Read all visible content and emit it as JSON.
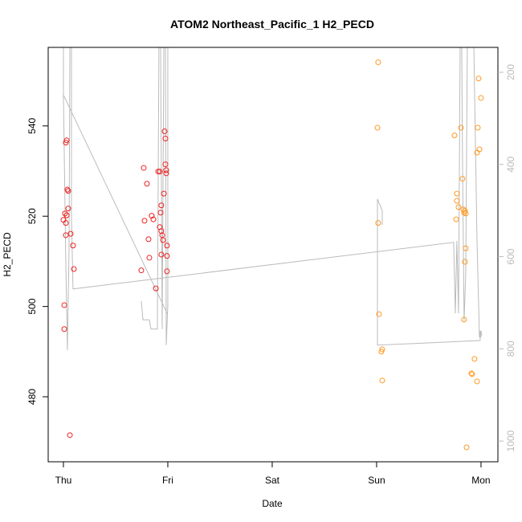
{
  "chart_data": {
    "type": "scatter",
    "title": "ATOM2 Northeast_Pacific_1 H2_PECD",
    "xlabel": "Date",
    "ylabel": "H2_PECD",
    "xlim": [
      -0.146,
      4.162
    ],
    "xticks": [
      {
        "value": 0,
        "label": "Thu"
      },
      {
        "value": 1,
        "label": "Fri"
      },
      {
        "value": 2,
        "label": "Sat"
      },
      {
        "value": 3,
        "label": "Sun"
      },
      {
        "value": 4,
        "label": "Mon"
      }
    ],
    "ylim": [
      465.6,
      557.4
    ],
    "yticks": [
      480,
      500,
      520,
      540
    ],
    "y2lim": [
      1045,
      146
    ],
    "y2ticks": [
      200,
      400,
      600,
      800,
      1000
    ],
    "series": [
      {
        "color": "#ee2222",
        "x": [
          0,
          0.008,
          0.008,
          0.015,
          0.023,
          0.031,
          0.023,
          0.023,
          0.031,
          0.038,
          0.046,
          0.046,
          0.069,
          0.092,
          0.1,
          0.062,
          0.746,
          0.769,
          0.777,
          0.8,
          0.815,
          0.823,
          0.846,
          0.862,
          0.885,
          0.908,
          0.923,
          0.931,
          0.938,
          0.923,
          0.938,
          0.946,
          0.954,
          0.938,
          0.962,
          0.969,
          0.977,
          0.977,
          0.985,
          0.985,
          0.992,
          0.992,
          0.992
        ],
        "values": [
          519.2,
          500.3,
          495.0,
          520.6,
          536.3,
          536.8,
          515.8,
          518.5,
          520.2,
          525.9,
          525.6,
          521.7,
          516.1,
          513.5,
          508.3,
          471.5,
          508.0,
          530.7,
          519.0,
          527.2,
          514.9,
          510.8,
          520.1,
          519.3,
          504.0,
          529.9,
          529.9,
          520.8,
          522.4,
          517.6,
          516.7,
          515.8,
          514.7,
          511.5,
          525.0,
          538.8,
          537.2,
          531.5,
          530.2,
          529.5,
          513.5,
          511.2,
          507.8
        ]
      },
      {
        "color": "#ff9922",
        "x": [
          3.015,
          3.008,
          3.015,
          3.023,
          3.054,
          3.046,
          3.054,
          3.746,
          3.769,
          3.769,
          3.785,
          3.762,
          3.808,
          3.823,
          3.831,
          3.838,
          3.846,
          3.854,
          3.854,
          3.846,
          3.838,
          3.862,
          3.908,
          3.915,
          3.938,
          3.962,
          3.962,
          3.969,
          3.985,
          3.977,
          4.0
        ],
        "values": [
          554.1,
          539.6,
          518.5,
          498.3,
          490.5,
          490.0,
          483.6,
          537.9,
          525.0,
          523.4,
          522.0,
          519.3,
          539.6,
          528.3,
          521.5,
          520.8,
          521.2,
          520.6,
          512.9,
          509.9,
          497.1,
          468.8,
          485.2,
          485.0,
          488.4,
          483.4,
          534.1,
          539.6,
          534.8,
          550.5,
          546.2
        ]
      },
      {
        "type": "line",
        "axis": "y2",
        "color": "#bbbbbb",
        "x": [
          0,
          0,
          0.023,
          0.038,
          0.054,
          0.062,
          null,
          0,
          1.0,
          null,
          0.077,
          0.077,
          0.092,
          3.738,
          3.754,
          3.769,
          3.785,
          3.8,
          null,
          0.746,
          0.762,
          0.823,
          0.838,
          0.9,
          0.915,
          0.931,
          0.946,
          0.962,
          0.977,
          0.985,
          1.0,
          1.0,
          null,
          3.008,
          3.054,
          3.054,
          null,
          3.008,
          3.008,
          3.992,
          3.992,
          4.0,
          null,
          3.815,
          3.823,
          3.838,
          3.854,
          3.869,
          null,
          3.931,
          3.962,
          3.985,
          4.0,
          4.008
        ],
        "values": [
          140,
          249,
          618,
          803,
          583,
          140,
          null,
          249,
          726,
          null,
          140,
          514,
          670,
          569,
          723,
          566,
          723,
          140,
          null,
          696,
          737,
          737,
          757,
          757,
          140,
          140,
          757,
          140,
          140,
          792,
          705,
          140,
          null,
          475,
          500,
          531,
          null,
          475,
          792,
          782,
          761,
          775,
          null,
          140,
          392,
          740,
          636,
          140,
          null,
          140,
          566,
          775,
          761,
          771
        ]
      }
    ]
  }
}
